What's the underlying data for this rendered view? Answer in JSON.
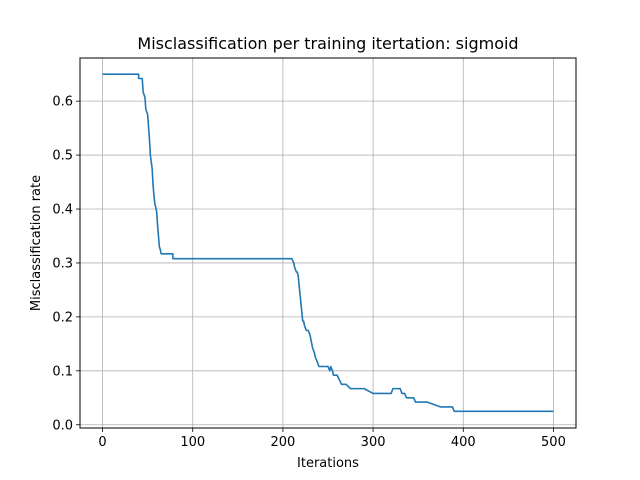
{
  "chart_data": {
    "type": "line",
    "title": "Misclassification per training itertation: sigmoid",
    "xlabel": "Iterations",
    "ylabel": "Misclassification rate",
    "xlim": [
      -25,
      525
    ],
    "ylim": [
      -0.006,
      0.68
    ],
    "xticks": [
      0,
      100,
      200,
      300,
      400,
      500
    ],
    "yticks": [
      0.0,
      0.1,
      0.2,
      0.3,
      0.4,
      0.5,
      0.6
    ],
    "xtick_labels": [
      "0",
      "100",
      "200",
      "300",
      "400",
      "500"
    ],
    "ytick_labels": [
      "0.0",
      "0.1",
      "0.2",
      "0.3",
      "0.4",
      "0.5",
      "0.6"
    ],
    "grid": true,
    "line_color": "#1f77b4",
    "series": [
      {
        "x": [
          0,
          40,
          40,
          44,
          45,
          47,
          48,
          50,
          52,
          53,
          55,
          56,
          57,
          58,
          60,
          61,
          62,
          63,
          64,
          65,
          66,
          70,
          78,
          78,
          100,
          150,
          200,
          210,
          212,
          213,
          215,
          216,
          217,
          218,
          219,
          220,
          221,
          222,
          223,
          224,
          226,
          228,
          230,
          232,
          233,
          235,
          236,
          238,
          240,
          243,
          245,
          250,
          252,
          253,
          255,
          256,
          258,
          260,
          265,
          270,
          275,
          280,
          290,
          300,
          310,
          320,
          322,
          330,
          332,
          335,
          337,
          345,
          347,
          360,
          375,
          388,
          390,
          400,
          450,
          500
        ],
        "y": [
          0.65,
          0.65,
          0.642,
          0.642,
          0.617,
          0.607,
          0.585,
          0.575,
          0.53,
          0.5,
          0.475,
          0.445,
          0.425,
          0.41,
          0.395,
          0.37,
          0.35,
          0.33,
          0.325,
          0.317,
          0.317,
          0.317,
          0.317,
          0.308,
          0.308,
          0.308,
          0.308,
          0.308,
          0.3,
          0.292,
          0.283,
          0.283,
          0.275,
          0.258,
          0.242,
          0.225,
          0.208,
          0.192,
          0.192,
          0.183,
          0.175,
          0.175,
          0.167,
          0.15,
          0.142,
          0.133,
          0.125,
          0.117,
          0.108,
          0.108,
          0.108,
          0.108,
          0.1,
          0.108,
          0.1,
          0.092,
          0.092,
          0.092,
          0.075,
          0.075,
          0.067,
          0.067,
          0.067,
          0.058,
          0.058,
          0.058,
          0.067,
          0.067,
          0.058,
          0.058,
          0.05,
          0.05,
          0.042,
          0.042,
          0.033,
          0.033,
          0.025,
          0.025,
          0.025,
          0.025
        ]
      }
    ]
  }
}
